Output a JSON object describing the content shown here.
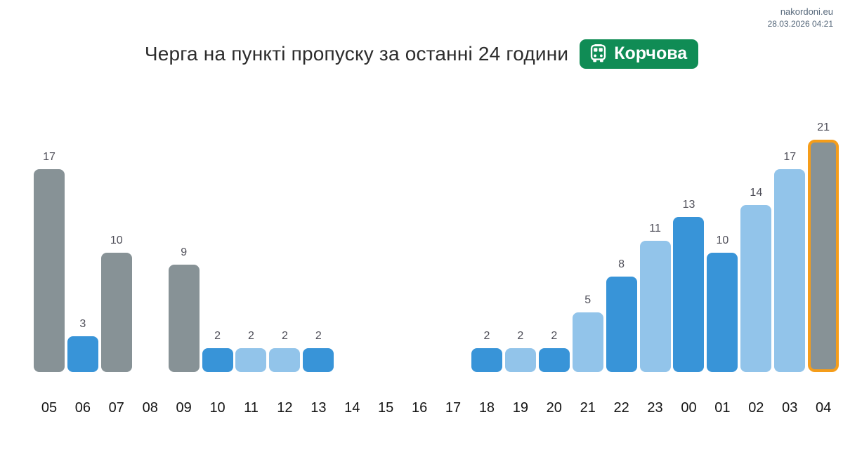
{
  "header": {
    "site": "nakordoni.eu",
    "datetime": "28.03.2026 04:21"
  },
  "title": {
    "text": "Черга на пункті пропуску за останні 24 години",
    "badge": {
      "icon": "bus-icon",
      "label": "Корчова",
      "background": "#108c55",
      "text_color": "#ffffff"
    }
  },
  "chart_data": {
    "type": "bar",
    "title": "Черга на пункті пропуску за останні 24 години",
    "subtitle_badge": "Корчова",
    "xlabel": "",
    "ylabel": "",
    "ylim": [
      0,
      21
    ],
    "grid": false,
    "legend": "none",
    "categories": [
      "05",
      "06",
      "07",
      "08",
      "09",
      "10",
      "11",
      "12",
      "13",
      "14",
      "15",
      "16",
      "17",
      "18",
      "19",
      "20",
      "21",
      "22",
      "23",
      "00",
      "01",
      "02",
      "03",
      "04"
    ],
    "values": [
      17,
      3,
      10,
      null,
      9,
      2,
      2,
      2,
      2,
      null,
      null,
      null,
      null,
      2,
      2,
      2,
      5,
      8,
      11,
      13,
      10,
      14,
      17,
      21
    ],
    "bar_colors": [
      "gray",
      "blue",
      "gray",
      null,
      "gray",
      "blue",
      "lightblue",
      "lightblue",
      "blue",
      null,
      null,
      null,
      null,
      "blue",
      "lightblue",
      "blue",
      "lightblue",
      "blue",
      "lightblue",
      "blue",
      "blue",
      "lightblue",
      "lightblue",
      "gray"
    ],
    "highlight_index": 23,
    "colors": {
      "gray": "#879296",
      "blue": "#3894d8",
      "lightblue": "#92c4ea",
      "highlight_border": "#f59d1a",
      "value_label": "#4e4e58",
      "axis_label": "#141414"
    }
  }
}
